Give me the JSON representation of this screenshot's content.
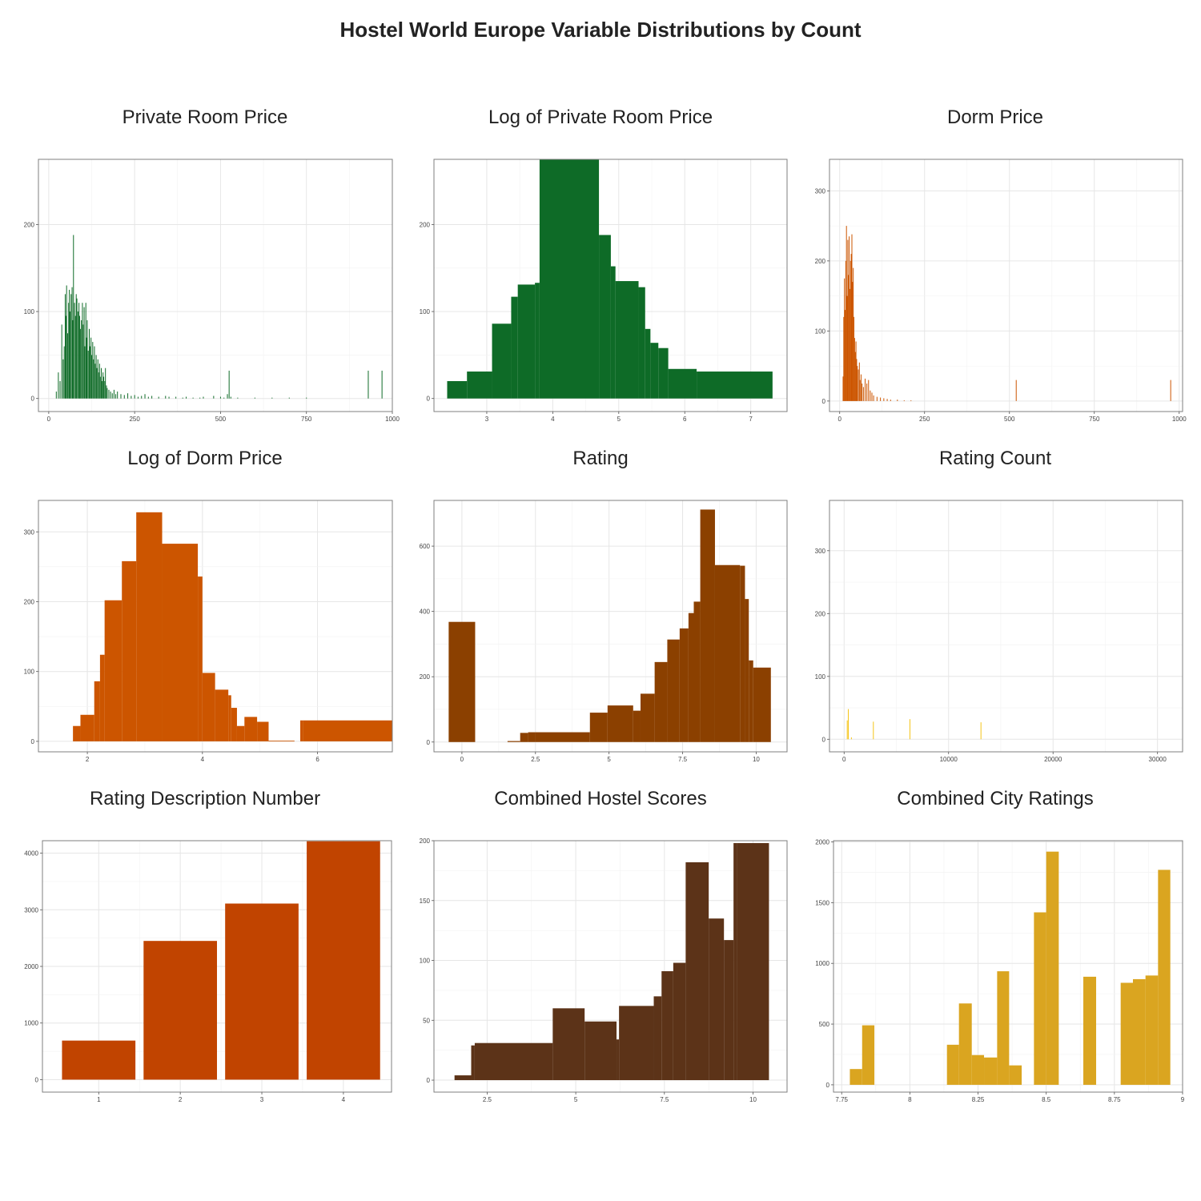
{
  "title": "Hostel World Europe Variable Distributions by Count",
  "chart_data": [
    {
      "type": "bar",
      "title": "Private Room Price",
      "color": "#0e6b27",
      "bar_mode": "spikes",
      "xlim": [
        -30,
        1000
      ],
      "ylim": [
        -15,
        275
      ],
      "xticks": [
        0,
        250,
        500,
        750,
        1000
      ],
      "yticks": [
        0,
        100,
        200
      ],
      "x": [
        22,
        28,
        33,
        38,
        42,
        45,
        48,
        50,
        52,
        55,
        58,
        60,
        62,
        65,
        68,
        70,
        72,
        75,
        78,
        80,
        82,
        85,
        88,
        90,
        92,
        95,
        98,
        100,
        103,
        105,
        108,
        110,
        112,
        115,
        118,
        120,
        123,
        125,
        128,
        130,
        133,
        135,
        138,
        140,
        143,
        145,
        148,
        150,
        153,
        155,
        158,
        160,
        163,
        165,
        168,
        170,
        175,
        180,
        185,
        190,
        195,
        200,
        210,
        220,
        230,
        240,
        250,
        260,
        270,
        280,
        290,
        300,
        320,
        340,
        350,
        370,
        390,
        400,
        420,
        440,
        450,
        480,
        500,
        510,
        520,
        525,
        530,
        550,
        600,
        650,
        700,
        750,
        930,
        970
      ],
      "values": [
        8,
        30,
        20,
        85,
        45,
        60,
        120,
        95,
        130,
        75,
        110,
        125,
        100,
        120,
        128,
        90,
        188,
        110,
        95,
        120,
        115,
        100,
        110,
        95,
        80,
        90,
        110,
        85,
        105,
        60,
        110,
        70,
        90,
        55,
        80,
        60,
        70,
        50,
        65,
        45,
        60,
        40,
        50,
        35,
        45,
        30,
        40,
        25,
        35,
        20,
        30,
        25,
        20,
        35,
        15,
        12,
        10,
        8,
        6,
        10,
        5,
        8,
        5,
        4,
        6,
        3,
        4,
        2,
        3,
        5,
        2,
        3,
        2,
        3,
        2,
        2,
        1,
        2,
        1,
        1,
        2,
        3,
        2,
        1,
        5,
        32,
        2,
        1,
        1,
        1,
        1,
        1,
        32,
        32
      ]
    },
    {
      "type": "bar",
      "title": "Log of Private Room Price",
      "color": "#0e6b27",
      "bar_mode": "edges",
      "xlim": [
        2.2,
        7.55
      ],
      "ylim": [
        -15,
        275
      ],
      "xticks": [
        3,
        4,
        5,
        6,
        7
      ],
      "yticks": [
        0,
        100,
        200
      ],
      "edges": [
        2.4,
        2.7,
        3.08,
        3.37,
        3.47,
        3.73,
        3.8,
        4.7,
        4.88,
        4.95,
        5.3,
        5.4,
        5.48,
        5.6,
        5.75,
        6.18,
        7.33
      ],
      "values": [
        20,
        31,
        86,
        117,
        131,
        133,
        275,
        188,
        152,
        135,
        128,
        80,
        64,
        58,
        34,
        31
      ]
    },
    {
      "type": "bar",
      "title": "Dorm Price",
      "color": "#cc5500",
      "bar_mode": "spikes",
      "xlim": [
        -30,
        1010
      ],
      "ylim": [
        -15,
        345
      ],
      "xticks": [
        0,
        250,
        500,
        750,
        1000
      ],
      "yticks": [
        0,
        100,
        200,
        300
      ],
      "x": [
        10,
        12,
        14,
        16,
        18,
        20,
        22,
        24,
        26,
        28,
        30,
        32,
        34,
        36,
        38,
        40,
        42,
        44,
        46,
        48,
        50,
        52,
        55,
        58,
        60,
        63,
        66,
        70,
        75,
        80,
        85,
        90,
        95,
        100,
        110,
        120,
        130,
        140,
        150,
        170,
        190,
        210,
        520,
        975
      ],
      "values": [
        35,
        120,
        175,
        130,
        200,
        250,
        150,
        230,
        180,
        235,
        160,
        200,
        210,
        238,
        170,
        190,
        120,
        90,
        70,
        85,
        60,
        50,
        45,
        55,
        30,
        38,
        25,
        20,
        32,
        25,
        30,
        15,
        12,
        8,
        6,
        5,
        4,
        3,
        2,
        2,
        1,
        1,
        30,
        30
      ]
    },
    {
      "type": "bar",
      "title": "Log of Dorm Price",
      "color": "#cc5500",
      "bar_mode": "edges",
      "xlim": [
        1.15,
        7.3
      ],
      "ylim": [
        -15,
        345
      ],
      "xticks": [
        2,
        4,
        6
      ],
      "yticks": [
        0,
        100,
        200,
        300
      ],
      "edges": [
        1.75,
        1.88,
        2.12,
        2.22,
        2.3,
        2.6,
        2.85,
        3.3,
        3.92,
        4.0,
        4.22,
        4.45,
        4.5,
        4.6,
        4.73,
        4.95,
        5.15,
        5.6,
        5.7,
        5.75,
        7.3
      ],
      "values": [
        22,
        38,
        86,
        124,
        202,
        258,
        328,
        283,
        236,
        98,
        74,
        66,
        48,
        22,
        35,
        28,
        1,
        0,
        30,
        30
      ]
    },
    {
      "type": "bar",
      "title": "Rating",
      "color": "#8b4000",
      "bar_mode": "edges",
      "xlim": [
        -0.95,
        11.05
      ],
      "ylim": [
        -30,
        740
      ],
      "xticks": [
        0,
        2.5,
        5,
        7.5,
        10
      ],
      "yticks": [
        0,
        200,
        400,
        600
      ],
      "edges": [
        -0.45,
        0.45,
        1.55,
        1.98,
        2.25,
        2.48,
        4.35,
        4.95,
        5.82,
        6.07,
        6.55,
        6.98,
        7.4,
        7.7,
        7.88,
        8.1,
        8.6,
        9.45,
        9.62,
        9.75,
        9.9,
        10.5
      ],
      "values": [
        368,
        0,
        3,
        28,
        30,
        30,
        90,
        112,
        96,
        148,
        245,
        314,
        348,
        395,
        430,
        712,
        542,
        540,
        438,
        250,
        228
      ]
    },
    {
      "type": "bar",
      "title": "Rating Count",
      "color": "#f5c518",
      "bar_mode": "spikes",
      "xlim": [
        -1400,
        32400
      ],
      "ylim": [
        -20,
        380
      ],
      "xticks": [
        0,
        10000,
        20000,
        30000
      ],
      "yticks": [
        0,
        100,
        200,
        300
      ],
      "xtick_labels": [
        "0",
        "10000",
        "20000",
        "30000"
      ],
      "x": [
        300,
        400,
        700,
        2800,
        6300,
        13100
      ],
      "values": [
        30,
        48,
        3,
        28,
        32,
        27
      ]
    },
    {
      "type": "bar",
      "title": "Rating Description Number",
      "color": "#c14400",
      "bar_mode": "categories",
      "xlim": [
        0.31,
        4.59
      ],
      "ylim": [
        -220,
        4220
      ],
      "xticks": [
        1,
        2,
        3,
        4
      ],
      "yticks": [
        0,
        1000,
        2000,
        3000,
        4000
      ],
      "categories": [
        1,
        2,
        3,
        4
      ],
      "values": [
        690,
        2450,
        3110,
        4210
      ]
    },
    {
      "type": "bar",
      "title": "Combined Hostel Scores",
      "color": "#5c3318",
      "bar_mode": "edges",
      "xlim": [
        1.0,
        10.96
      ],
      "ylim": [
        -10,
        200
      ],
      "xticks": [
        2.5,
        5,
        7.5,
        10
      ],
      "yticks": [
        0,
        50,
        100,
        150,
        200
      ],
      "edges": [
        1.58,
        2.05,
        2.15,
        4.35,
        5.25,
        6.15,
        6.22,
        7.2,
        7.42,
        7.75,
        8.1,
        8.75,
        9.18,
        9.45,
        9.55,
        10.45
      ],
      "values": [
        4,
        29,
        31,
        60,
        49,
        34,
        62,
        70,
        91,
        98,
        182,
        135,
        117,
        198,
        198
      ]
    },
    {
      "type": "bar",
      "title": "Combined City Ratings",
      "color": "#daa520",
      "bar_mode": "edges",
      "xlim": [
        7.72,
        9.0
      ],
      "ylim": [
        -60,
        2010
      ],
      "xticks": [
        7.75,
        8,
        8.25,
        8.5,
        8.75,
        9
      ],
      "yticks": [
        0,
        500,
        1000,
        1500,
        2000
      ],
      "edges": [
        7.78,
        7.825,
        7.87,
        8.136,
        8.18,
        8.227,
        8.272,
        8.32,
        8.364,
        8.41,
        8.455,
        8.5,
        8.546,
        8.636,
        8.683,
        8.773,
        8.818,
        8.864,
        8.91,
        8.955
      ],
      "values": [
        130,
        490,
        0,
        330,
        670,
        245,
        225,
        935,
        160,
        0,
        1420,
        1920,
        0,
        890,
        0,
        840,
        870,
        900,
        1770
      ]
    }
  ]
}
